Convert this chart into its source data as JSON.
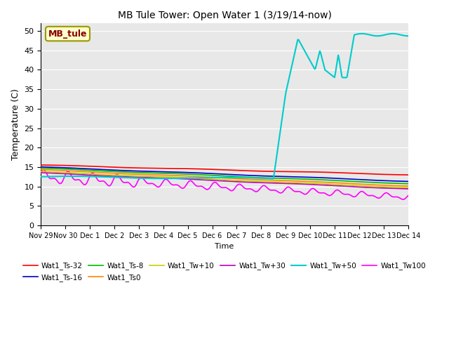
{
  "title": "MB Tule Tower: Open Water 1 (3/19/14-now)",
  "xlabel": "Time",
  "ylabel": "Temperature (C)",
  "xlim": [
    0,
    15
  ],
  "ylim": [
    0,
    52
  ],
  "yticks": [
    0,
    5,
    10,
    15,
    20,
    25,
    30,
    35,
    40,
    45,
    50
  ],
  "xtick_labels": [
    "Nov 29",
    "Nov 30",
    "Dec 1",
    "Dec 2",
    "Dec 3",
    "Dec 4",
    "Dec 5",
    "Dec 6",
    "Dec 7",
    "Dec 8",
    "Dec 9",
    "Dec 10",
    "Dec 11",
    "Dec 12",
    "Dec 13",
    "Dec 14"
  ],
  "background_color": "#e8e8e8",
  "grid_color": "#ffffff",
  "legend_box": {
    "label": "MB_tule",
    "facecolor": "#ffffcc",
    "edgecolor": "#999900",
    "textcolor": "#880000"
  },
  "series": {
    "Wat1_Ts-32": {
      "color": "#ff0000"
    },
    "Wat1_Ts-16": {
      "color": "#0000cc"
    },
    "Wat1_Ts-8": {
      "color": "#00bb00"
    },
    "Wat1_Ts0": {
      "color": "#ff8800"
    },
    "Wat1_Tw+10": {
      "color": "#cccc00"
    },
    "Wat1_Tw+30": {
      "color": "#bb00bb"
    },
    "Wat1_Tw+50": {
      "color": "#00cccc"
    },
    "Wat1_Tw100": {
      "color": "#ff00ff"
    }
  },
  "legend_order": [
    "Wat1_Ts-32",
    "Wat1_Ts-16",
    "Wat1_Ts-8",
    "Wat1_Ts0",
    "Wat1_Tw+10",
    "Wat1_Tw+30",
    "Wat1_Tw+50",
    "Wat1_Tw100"
  ]
}
